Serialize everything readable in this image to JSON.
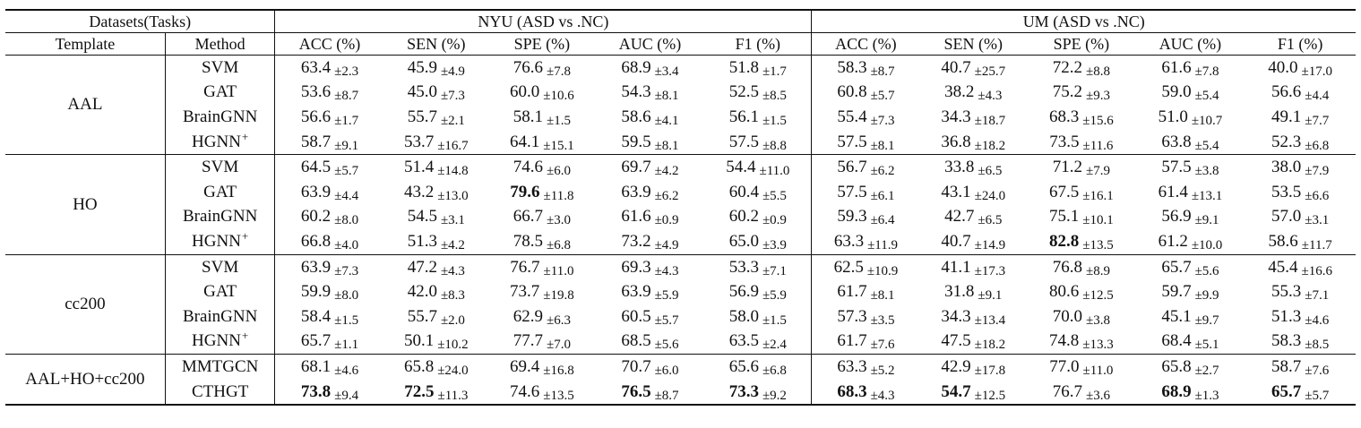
{
  "header": {
    "datasets_tasks": "Datasets(Tasks)",
    "nyu": "NYU (ASD vs .NC)",
    "um": "UM (ASD vs .NC)",
    "template": "Template",
    "method": "Method",
    "metrics": [
      "ACC (%)",
      "SEN (%)",
      "SPE (%)",
      "AUC (%)",
      "F1 (%)",
      "ACC (%)",
      "SEN (%)",
      "SPE (%)",
      "AUC (%)",
      "F1 (%)"
    ]
  },
  "groups": [
    {
      "template": "AAL",
      "rows": [
        {
          "method": "SVM",
          "sup": "",
          "cells": [
            [
              "63.4",
              "±2.3",
              false
            ],
            [
              "45.9",
              "±4.9",
              false
            ],
            [
              "76.6",
              "±7.8",
              false
            ],
            [
              "68.9",
              "±3.4",
              false
            ],
            [
              "51.8",
              "±1.7",
              false
            ],
            [
              "58.3",
              "±8.7",
              false
            ],
            [
              "40.7",
              "±25.7",
              false
            ],
            [
              "72.2",
              "±8.8",
              false
            ],
            [
              "61.6",
              "±7.8",
              false
            ],
            [
              "40.0",
              "±17.0",
              false
            ]
          ]
        },
        {
          "method": "GAT",
          "sup": "",
          "cells": [
            [
              "53.6",
              "±8.7",
              false
            ],
            [
              "45.0",
              "±7.3",
              false
            ],
            [
              "60.0",
              "±10.6",
              false
            ],
            [
              "54.3",
              "±8.1",
              false
            ],
            [
              "52.5",
              "±8.5",
              false
            ],
            [
              "60.8",
              "±5.7",
              false
            ],
            [
              "38.2",
              "±4.3",
              false
            ],
            [
              "75.2",
              "±9.3",
              false
            ],
            [
              "59.0",
              "±5.4",
              false
            ],
            [
              "56.6",
              "±4.4",
              false
            ]
          ]
        },
        {
          "method": "BrainGNN",
          "sup": "",
          "cells": [
            [
              "56.6",
              "±1.7",
              false
            ],
            [
              "55.7",
              "±2.1",
              false
            ],
            [
              "58.1",
              "±1.5",
              false
            ],
            [
              "58.6",
              "±4.1",
              false
            ],
            [
              "56.1",
              "±1.5",
              false
            ],
            [
              "55.4",
              "±7.3",
              false
            ],
            [
              "34.3",
              "±18.7",
              false
            ],
            [
              "68.3",
              "±15.6",
              false
            ],
            [
              "51.0",
              "±10.7",
              false
            ],
            [
              "49.1",
              "±7.7",
              false
            ]
          ]
        },
        {
          "method": "HGNN",
          "sup": "+",
          "cells": [
            [
              "58.7",
              "±9.1",
              false
            ],
            [
              "53.7",
              "±16.7",
              false
            ],
            [
              "64.1",
              "±15.1",
              false
            ],
            [
              "59.5",
              "±8.1",
              false
            ],
            [
              "57.5",
              "±8.8",
              false
            ],
            [
              "57.5",
              "±8.1",
              false
            ],
            [
              "36.8",
              "±18.2",
              false
            ],
            [
              "73.5",
              "±11.6",
              false
            ],
            [
              "63.8",
              "±5.4",
              false
            ],
            [
              "52.3",
              "±6.8",
              false
            ]
          ]
        }
      ]
    },
    {
      "template": "HO",
      "rows": [
        {
          "method": "SVM",
          "sup": "",
          "cells": [
            [
              "64.5",
              "±5.7",
              false
            ],
            [
              "51.4",
              "±14.8",
              false
            ],
            [
              "74.6",
              "±6.0",
              false
            ],
            [
              "69.7",
              "±4.2",
              false
            ],
            [
              "54.4",
              "±11.0",
              false
            ],
            [
              "56.7",
              "±6.2",
              false
            ],
            [
              "33.8",
              "±6.5",
              false
            ],
            [
              "71.2",
              "±7.9",
              false
            ],
            [
              "57.5",
              "±3.8",
              false
            ],
            [
              "38.0",
              "±7.9",
              false
            ]
          ]
        },
        {
          "method": "GAT",
          "sup": "",
          "cells": [
            [
              "63.9",
              "±4.4",
              false
            ],
            [
              "43.2",
              "±13.0",
              false
            ],
            [
              "79.6",
              "±11.8",
              true
            ],
            [
              "63.9",
              "±6.2",
              false
            ],
            [
              "60.4",
              "±5.5",
              false
            ],
            [
              "57.5",
              "±6.1",
              false
            ],
            [
              "43.1",
              "±24.0",
              false
            ],
            [
              "67.5",
              "±16.1",
              false
            ],
            [
              "61.4",
              "±13.1",
              false
            ],
            [
              "53.5",
              "±6.6",
              false
            ]
          ]
        },
        {
          "method": "BrainGNN",
          "sup": "",
          "cells": [
            [
              "60.2",
              "±8.0",
              false
            ],
            [
              "54.5",
              "±3.1",
              false
            ],
            [
              "66.7",
              "±3.0",
              false
            ],
            [
              "61.6",
              "±0.9",
              false
            ],
            [
              "60.2",
              "±0.9",
              false
            ],
            [
              "59.3",
              "±6.4",
              false
            ],
            [
              "42.7",
              "±6.5",
              false
            ],
            [
              "75.1",
              "±10.1",
              false
            ],
            [
              "56.9",
              "±9.1",
              false
            ],
            [
              "57.0",
              "±3.1",
              false
            ]
          ]
        },
        {
          "method": "HGNN",
          "sup": "+",
          "cells": [
            [
              "66.8",
              "±4.0",
              false
            ],
            [
              "51.3",
              "±4.2",
              false
            ],
            [
              "78.5",
              "±6.8",
              false
            ],
            [
              "73.2",
              "±4.9",
              false
            ],
            [
              "65.0",
              "±3.9",
              false
            ],
            [
              "63.3",
              "±11.9",
              false
            ],
            [
              "40.7",
              "±14.9",
              false
            ],
            [
              "82.8",
              "±13.5",
              true
            ],
            [
              "61.2",
              "±10.0",
              false
            ],
            [
              "58.6",
              "±11.7",
              false
            ]
          ]
        }
      ]
    },
    {
      "template": "cc200",
      "rows": [
        {
          "method": "SVM",
          "sup": "",
          "cells": [
            [
              "63.9",
              "±7.3",
              false
            ],
            [
              "47.2",
              "±4.3",
              false
            ],
            [
              "76.7",
              "±11.0",
              false
            ],
            [
              "69.3",
              "±4.3",
              false
            ],
            [
              "53.3",
              "±7.1",
              false
            ],
            [
              "62.5",
              "±10.9",
              false
            ],
            [
              "41.1",
              "±17.3",
              false
            ],
            [
              "76.8",
              "±8.9",
              false
            ],
            [
              "65.7",
              "±5.6",
              false
            ],
            [
              "45.4",
              "±16.6",
              false
            ]
          ]
        },
        {
          "method": "GAT",
          "sup": "",
          "cells": [
            [
              "59.9",
              "±8.0",
              false
            ],
            [
              "42.0",
              "±8.3",
              false
            ],
            [
              "73.7",
              "±19.8",
              false
            ],
            [
              "63.9",
              "±5.9",
              false
            ],
            [
              "56.9",
              "±5.9",
              false
            ],
            [
              "61.7",
              "±8.1",
              false
            ],
            [
              "31.8",
              "±9.1",
              false
            ],
            [
              "80.6",
              "±12.5",
              false
            ],
            [
              "59.7",
              "±9.9",
              false
            ],
            [
              "55.3",
              "±7.1",
              false
            ]
          ]
        },
        {
          "method": "BrainGNN",
          "sup": "",
          "cells": [
            [
              "58.4",
              "±1.5",
              false
            ],
            [
              "55.7",
              "±2.0",
              false
            ],
            [
              "62.9",
              "±6.3",
              false
            ],
            [
              "60.5",
              "±5.7",
              false
            ],
            [
              "58.0",
              "±1.5",
              false
            ],
            [
              "57.3",
              "±3.5",
              false
            ],
            [
              "34.3",
              "±13.4",
              false
            ],
            [
              "70.0",
              "±3.8",
              false
            ],
            [
              "45.1",
              "±9.7",
              false
            ],
            [
              "51.3",
              "±4.6",
              false
            ]
          ]
        },
        {
          "method": "HGNN",
          "sup": "+",
          "cells": [
            [
              "65.7",
              "±1.1",
              false
            ],
            [
              "50.1",
              "±10.2",
              false
            ],
            [
              "77.7",
              "±7.0",
              false
            ],
            [
              "68.5",
              "±5.6",
              false
            ],
            [
              "63.5",
              "±2.4",
              false
            ],
            [
              "61.7",
              "±7.6",
              false
            ],
            [
              "47.5",
              "±18.2",
              false
            ],
            [
              "74.8",
              "±13.3",
              false
            ],
            [
              "68.4",
              "±5.1",
              false
            ],
            [
              "58.3",
              "±8.5",
              false
            ]
          ]
        }
      ]
    },
    {
      "template": "AAL+HO+cc200",
      "rows": [
        {
          "method": "MMTGCN",
          "sup": "",
          "cells": [
            [
              "68.1",
              "±4.6",
              false
            ],
            [
              "65.8",
              "±24.0",
              false
            ],
            [
              "69.4",
              "±16.8",
              false
            ],
            [
              "70.7",
              "±6.0",
              false
            ],
            [
              "65.6",
              "±6.8",
              false
            ],
            [
              "63.3",
              "±5.2",
              false
            ],
            [
              "42.9",
              "±17.8",
              false
            ],
            [
              "77.0",
              "±11.0",
              false
            ],
            [
              "65.8",
              "±2.7",
              false
            ],
            [
              "58.7",
              "±7.6",
              false
            ]
          ]
        },
        {
          "method": "CTHGT",
          "sup": "",
          "cells": [
            [
              "73.8",
              "±9.4",
              true
            ],
            [
              "72.5",
              "±11.3",
              true
            ],
            [
              "74.6",
              "±13.5",
              false
            ],
            [
              "76.5",
              "±8.7",
              true
            ],
            [
              "73.3",
              "±9.2",
              true
            ],
            [
              "68.3",
              "±4.3",
              true
            ],
            [
              "54.7",
              "±12.5",
              true
            ],
            [
              "76.7",
              "±3.6",
              false
            ],
            [
              "68.9",
              "±1.3",
              true
            ],
            [
              "65.7",
              "±5.7",
              true
            ]
          ]
        }
      ]
    }
  ]
}
